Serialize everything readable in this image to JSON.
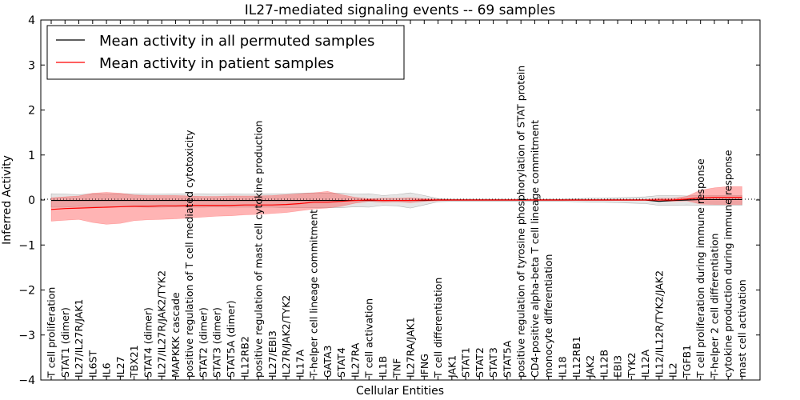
{
  "chart_data": {
    "type": "line",
    "title": "IL27-mediated signaling events -- 69 samples",
    "xlabel": "Cellular Entities",
    "ylabel": "Inferred Activity",
    "ylim": [
      -4,
      4
    ],
    "yticks": [
      -4,
      -3,
      -2,
      -1,
      0,
      1,
      2,
      3,
      4
    ],
    "ytick_labels": [
      "−4",
      "−3",
      "−2",
      "−1",
      "0",
      "1",
      "2",
      "3",
      "4"
    ],
    "legend_position": "top-left",
    "categories": [
      "T cell proliferation",
      "STAT1 (dimer)",
      "IL27/IL27R/JAK1",
      "IL6ST",
      "IL6",
      "IL27",
      "TBX21",
      "STAT4 (dimer)",
      "IL27/IL27R/JAK2/TYK2",
      "MAPKKK cascade",
      "positive regulation of T cell mediated cytotoxicity",
      "STAT2 (dimer)",
      "STAT3 (dimer)",
      "STAT5A (dimer)",
      "IL12RB2",
      "positive regulation of mast cell cytokine production",
      "IL27/EBI3",
      "IL27R/JAK2/TYK2",
      "IL17A",
      "T-helper cell lineage commitment",
      "GATA3",
      "STAT4",
      "IL27RA",
      "T cell activation",
      "IL1B",
      "TNF",
      "IL27RA/JAK1",
      "IFNG",
      "T cell differentiation",
      "JAK1",
      "STAT1",
      "STAT2",
      "STAT3",
      "STAT5A",
      "positive regulation of tyrosine phosphorylation of STAT protein",
      "CD4-positive alpha-beta T cell lineage commitment",
      "monocyte differentiation",
      "IL18",
      "IL12RB1",
      "JAK2",
      "IL12B",
      "EBI3",
      "TYK2",
      "IL12A",
      "IL12/IL12R/TYK2/JAK2",
      "IL2",
      "TGFB1",
      "T cell proliferation during immune response",
      "T-helper 2 cell differentiation",
      "cytokine production during immune response",
      "mast cell activation"
    ],
    "series": [
      {
        "name": "Mean activity in all permuted samples",
        "color": "#000000",
        "values": [
          -0.01,
          -0.01,
          -0.01,
          -0.01,
          -0.01,
          -0.01,
          -0.01,
          -0.01,
          -0.01,
          -0.01,
          -0.01,
          -0.01,
          -0.01,
          -0.01,
          -0.01,
          -0.01,
          -0.01,
          -0.01,
          -0.01,
          -0.01,
          -0.01,
          -0.01,
          -0.01,
          -0.01,
          -0.01,
          -0.01,
          -0.01,
          -0.01,
          0,
          0,
          0,
          0,
          0,
          0,
          0,
          0,
          0,
          0,
          0,
          0,
          0,
          0,
          0,
          0,
          -0.03,
          -0.01,
          0,
          0.01,
          0.01,
          0.01,
          0.01
        ],
        "band_low": [
          -0.16,
          -0.16,
          -0.14,
          -0.15,
          -0.16,
          -0.15,
          -0.15,
          -0.16,
          -0.16,
          -0.15,
          -0.16,
          -0.16,
          -0.15,
          -0.16,
          -0.16,
          -0.16,
          -0.16,
          -0.17,
          -0.17,
          -0.17,
          -0.17,
          -0.17,
          -0.15,
          -0.16,
          -0.12,
          -0.13,
          -0.18,
          -0.11,
          -0.04,
          -0.03,
          -0.03,
          -0.03,
          -0.03,
          -0.03,
          -0.03,
          -0.03,
          -0.03,
          -0.03,
          -0.04,
          -0.05,
          -0.05,
          -0.06,
          -0.07,
          -0.08,
          -0.12,
          -0.12,
          -0.11,
          -0.12,
          -0.12,
          -0.12,
          -0.12
        ],
        "band_high": [
          0.14,
          0.13,
          0.12,
          0.14,
          0.13,
          0.14,
          0.14,
          0.13,
          0.13,
          0.14,
          0.14,
          0.14,
          0.13,
          0.14,
          0.13,
          0.13,
          0.14,
          0.14,
          0.15,
          0.16,
          0.15,
          0.15,
          0.13,
          0.14,
          0.1,
          0.12,
          0.16,
          0.1,
          0.03,
          0.02,
          0.02,
          0.02,
          0.02,
          0.02,
          0.02,
          0.02,
          0.02,
          0.02,
          0.03,
          0.04,
          0.04,
          0.05,
          0.06,
          0.07,
          0.1,
          0.1,
          0.09,
          0.1,
          0.1,
          0.1,
          0.1
        ]
      },
      {
        "name": "Mean activity in patient samples",
        "color": "#ff0000",
        "values": [
          -0.21,
          -0.19,
          -0.18,
          -0.17,
          -0.16,
          -0.15,
          -0.14,
          -0.14,
          -0.13,
          -0.13,
          -0.12,
          -0.12,
          -0.12,
          -0.12,
          -0.11,
          -0.11,
          -0.11,
          -0.1,
          -0.08,
          -0.05,
          -0.05,
          -0.03,
          -0.01,
          0,
          -0.01,
          -0.01,
          -0.01,
          0,
          0,
          0,
          0,
          0,
          0,
          0,
          0,
          0,
          0,
          0,
          0,
          0,
          0,
          0,
          0,
          0,
          0,
          0,
          0.02,
          0.05,
          0.06,
          0.06,
          0.06
        ],
        "band_low": [
          -0.47,
          -0.45,
          -0.43,
          -0.5,
          -0.54,
          -0.52,
          -0.46,
          -0.44,
          -0.43,
          -0.42,
          -0.4,
          -0.38,
          -0.36,
          -0.35,
          -0.33,
          -0.32,
          -0.3,
          -0.28,
          -0.24,
          -0.2,
          -0.18,
          -0.14,
          -0.07,
          -0.03,
          -0.05,
          -0.04,
          -0.06,
          -0.03,
          -0.02,
          -0.01,
          -0.01,
          -0.01,
          -0.01,
          -0.01,
          -0.01,
          -0.01,
          -0.01,
          -0.01,
          -0.01,
          -0.01,
          -0.01,
          -0.01,
          -0.01,
          -0.01,
          -0.03,
          -0.03,
          -0.02,
          -0.09,
          -0.1,
          -0.1,
          -0.1
        ],
        "band_high": [
          0.05,
          0.07,
          0.09,
          0.15,
          0.17,
          0.15,
          0.11,
          0.1,
          0.1,
          0.1,
          0.09,
          0.08,
          0.08,
          0.09,
          0.09,
          0.09,
          0.1,
          0.12,
          0.14,
          0.16,
          0.19,
          0.12,
          0.06,
          0.03,
          0.04,
          0.04,
          0.05,
          0.03,
          0.02,
          0.01,
          0.01,
          0.01,
          0.01,
          0.01,
          0.01,
          0.01,
          0.01,
          0.01,
          0.01,
          0.01,
          0.01,
          0.01,
          0.01,
          0.01,
          0.04,
          0.04,
          0.08,
          0.22,
          0.27,
          0.3,
          0.3
        ]
      }
    ]
  }
}
